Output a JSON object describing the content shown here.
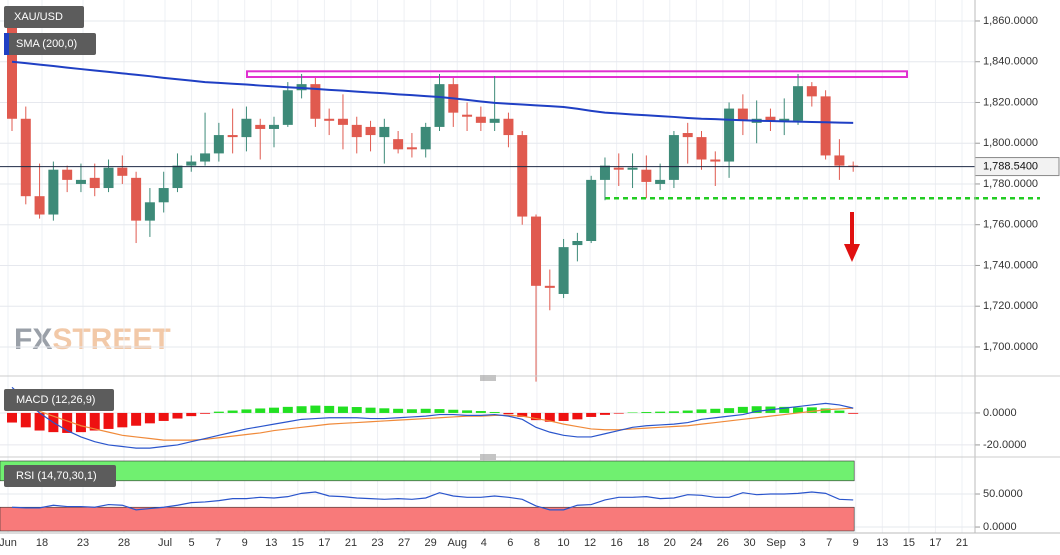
{
  "chart_data": [
    {
      "type": "candlestick",
      "name": "XAU/USD",
      "up_color": "#3d8a78",
      "down_color": "#e05a4f",
      "open": [
        1858,
        1812,
        1774,
        1765,
        1787,
        1780,
        1783,
        1778,
        1788,
        1783,
        1762,
        1771,
        1778,
        1789,
        1791,
        1795,
        1804,
        1803,
        1809,
        1807,
        1809,
        1826,
        1829,
        1812,
        1812,
        1809,
        1808,
        1803,
        1802,
        1798,
        1797,
        1808,
        1829,
        1814,
        1813,
        1810,
        1812,
        1804,
        1764,
        1730,
        1726,
        1750,
        1752,
        1782,
        1788,
        1787,
        1787,
        1780,
        1782,
        1805,
        1803,
        1792,
        1791,
        1817,
        1810,
        1813,
        1811,
        1811,
        1828,
        1823,
        1794,
        1789
      ],
      "high": [
        1865,
        1818,
        1790,
        1791,
        1789,
        1790,
        1790,
        1792,
        1794,
        1786,
        1778,
        1786,
        1795,
        1794,
        1815,
        1810,
        1817,
        1818,
        1812,
        1813,
        1830,
        1834,
        1832,
        1817,
        1824,
        1813,
        1811,
        1812,
        1806,
        1805,
        1810,
        1834,
        1832,
        1820,
        1818,
        1833,
        1815,
        1806,
        1765,
        1738,
        1753,
        1756,
        1784,
        1793,
        1795,
        1795,
        1794,
        1790,
        1806,
        1810,
        1806,
        1796,
        1820,
        1824,
        1821,
        1817,
        1822,
        1834,
        1830,
        1826,
        1802,
        1791
      ],
      "low": [
        1806,
        1770,
        1763,
        1762,
        1776,
        1776,
        1774,
        1776,
        1780,
        1751,
        1754,
        1766,
        1776,
        1786,
        1789,
        1791,
        1795,
        1796,
        1792,
        1798,
        1808,
        1822,
        1808,
        1804,
        1797,
        1795,
        1796,
        1790,
        1795,
        1793,
        1793,
        1806,
        1808,
        1806,
        1806,
        1806,
        1798,
        1760,
        1683,
        1718,
        1724,
        1742,
        1751,
        1772,
        1779,
        1778,
        1773,
        1777,
        1778,
        1790,
        1787,
        1779,
        1783,
        1804,
        1800,
        1806,
        1804,
        1809,
        1818,
        1792,
        1782,
        1786
      ],
      "close": [
        1812,
        1774,
        1765,
        1787,
        1782,
        1782,
        1778,
        1788,
        1784,
        1762,
        1771,
        1778,
        1789,
        1791,
        1795,
        1804,
        1803,
        1812,
        1807,
        1809,
        1826,
        1829,
        1812,
        1811,
        1809,
        1803,
        1804,
        1808,
        1797,
        1797,
        1808,
        1829,
        1815,
        1813,
        1810,
        1812,
        1804,
        1764,
        1730,
        1729,
        1749,
        1752,
        1782,
        1789,
        1787,
        1788,
        1781,
        1782,
        1804,
        1803,
        1792,
        1791,
        1817,
        1811,
        1812,
        1811,
        1812,
        1828,
        1823,
        1794,
        1789,
        1788.54
      ],
      "overlays": [
        {
          "name": "SMA (200,0)",
          "color": "#1f3fc4",
          "values": [
            1840,
            1839.3,
            1838.6,
            1837.9,
            1837.1,
            1836.4,
            1835.7,
            1835,
            1834.3,
            1833.6,
            1832.9,
            1832.1,
            1831.4,
            1830.7,
            1830,
            1829.6,
            1829.2,
            1828.8,
            1828.3,
            1827.9,
            1827.5,
            1827.1,
            1826.7,
            1826.2,
            1825.8,
            1825.3,
            1824.9,
            1824.5,
            1824,
            1823.6,
            1823.1,
            1822.7,
            1822,
            1821.3,
            1820.5,
            1819.8,
            1819.4,
            1819,
            1818.6,
            1818.2,
            1817.8,
            1816.9,
            1815.9,
            1815,
            1814.6,
            1814.1,
            1813.7,
            1813.3,
            1812.9,
            1812.4,
            1812,
            1811.8,
            1811.5,
            1811.3,
            1811,
            1810.9,
            1810.7,
            1810.6,
            1810.4,
            1810.3,
            1810.1,
            1810
          ]
        }
      ],
      "price_line": {
        "value": 1788.54,
        "label": "1,788.5400"
      },
      "resistance": {
        "low": 1832.5,
        "high": 1835.3,
        "color": "#e030d0"
      },
      "support": {
        "value": 1773,
        "color": "#22cc22"
      },
      "ylim": [
        1687.7,
        1870.3
      ],
      "yticks": [
        {
          "value": 1700,
          "label": "1,700.0000"
        },
        {
          "value": 1720,
          "label": "1,720.0000"
        },
        {
          "value": 1740,
          "label": "1,740.0000"
        },
        {
          "value": 1760,
          "label": "1,760.0000"
        },
        {
          "value": 1780,
          "label": "1,780.0000"
        },
        {
          "value": 1800,
          "label": "1,800.0000"
        },
        {
          "value": 1820,
          "label": "1,820.0000"
        },
        {
          "value": 1840,
          "label": "1,840.0000"
        },
        {
          "value": 1860,
          "label": "1,860.0000"
        }
      ],
      "grid": true
    },
    {
      "type": "macd",
      "name": "MACD (12,26,9)",
      "pos_color": "#22e022",
      "neg_color": "#ee1111",
      "line_color": "#2a55cc",
      "signal_color": "#f08a3a",
      "histogram": [
        -6,
        -9,
        -11,
        -12,
        -12.5,
        -12,
        -11,
        -10,
        -9,
        -8,
        -6.5,
        -5,
        -3.5,
        -2,
        -0.5,
        0.8,
        1.5,
        2.2,
        2.8,
        3.3,
        3.8,
        4.2,
        4.6,
        4.4,
        4,
        3.7,
        3.3,
        2.9,
        2.6,
        2.3,
        2.6,
        2.4,
        2,
        1.6,
        1.2,
        0.6,
        -0.8,
        -2.5,
        -4.5,
        -5.5,
        -5,
        -4,
        -2.5,
        -1.2,
        -0.4,
        0.3,
        0.6,
        0.8,
        1,
        1.5,
        2.2,
        2.6,
        3,
        3.8,
        4.2,
        4,
        3.8,
        3.4,
        3.5,
        2.8,
        1.5,
        -0.5
      ],
      "macd": [
        16,
        8,
        0,
        -6,
        -11,
        -15,
        -18,
        -20,
        -21,
        -22,
        -22,
        -21,
        -20,
        -18,
        -16,
        -14,
        -12,
        -10,
        -8.5,
        -7,
        -5.5,
        -4,
        -3.5,
        -3,
        -3,
        -3,
        -3.5,
        -3.5,
        -3,
        -2.5,
        -2,
        -1,
        -1,
        -1.5,
        -1.5,
        -1,
        -2,
        -4,
        -9,
        -12,
        -14,
        -15,
        -15,
        -13,
        -11,
        -9,
        -8,
        -7.5,
        -7,
        -6,
        -4,
        -3,
        -2,
        -1,
        1,
        2,
        3,
        4,
        5,
        6,
        5,
        3
      ],
      "signal": [
        5,
        3,
        1,
        -2,
        -5,
        -8,
        -10,
        -12,
        -14,
        -15,
        -16,
        -17,
        -17,
        -17,
        -16.5,
        -15.5,
        -14.5,
        -13.5,
        -12.5,
        -11,
        -10,
        -9,
        -8,
        -7,
        -6.5,
        -6,
        -5.5,
        -5,
        -4.5,
        -4,
        -3.5,
        -3,
        -2.5,
        -2,
        -2,
        -1.5,
        -1.5,
        -2,
        -3.5,
        -5,
        -7,
        -8.5,
        -10,
        -10.5,
        -10.5,
        -10,
        -9.5,
        -9,
        -8.5,
        -8,
        -7,
        -6,
        -5,
        -4,
        -3,
        -2,
        -1,
        0,
        1,
        2,
        2.5,
        3
      ],
      "ylim": [
        -26.3,
        20.6
      ],
      "yticks": [
        {
          "value": -20,
          "label": "-20.0000"
        },
        {
          "value": 0,
          "label": "0.0000"
        }
      ]
    },
    {
      "type": "rsi",
      "name": "RSI (14,70,30,1)",
      "line_color": "#2a55cc",
      "overbought": 70,
      "oversold": 30,
      "overbought_color": "#70f070",
      "oversold_color": "#f87a7a",
      "values": [
        30,
        29,
        29,
        33,
        31,
        31,
        30,
        34,
        33,
        26,
        28,
        30,
        33,
        37,
        38,
        40,
        43,
        43,
        45,
        44,
        46,
        51,
        53,
        47,
        46,
        44,
        43,
        42,
        43,
        42,
        44,
        52,
        47,
        45,
        45,
        47,
        45,
        42,
        32,
        26,
        26,
        33,
        34,
        41,
        45,
        45,
        46,
        43,
        44,
        49,
        48,
        45,
        45,
        52,
        49,
        50,
        50,
        51,
        53,
        51,
        42,
        41
      ],
      "ylim": [
        -6,
        101.5
      ],
      "yticks": [
        {
          "value": 0,
          "label": "0.0000"
        },
        {
          "value": 50,
          "label": "50.0000"
        }
      ]
    }
  ],
  "x_axis_labels": [
    "Jun",
    "18",
    "23",
    "28",
    "Jul",
    "5",
    "7",
    "9",
    "13",
    "15",
    "17",
    "21",
    "23",
    "27",
    "29",
    "Aug",
    "4",
    "6",
    "8",
    "10",
    "12",
    "16",
    "18",
    "20",
    "24",
    "26",
    "30",
    "Sep",
    "3",
    "7",
    "9",
    "13",
    "15",
    "17",
    "21"
  ],
  "watermark": [
    "FX",
    "STREET"
  ]
}
